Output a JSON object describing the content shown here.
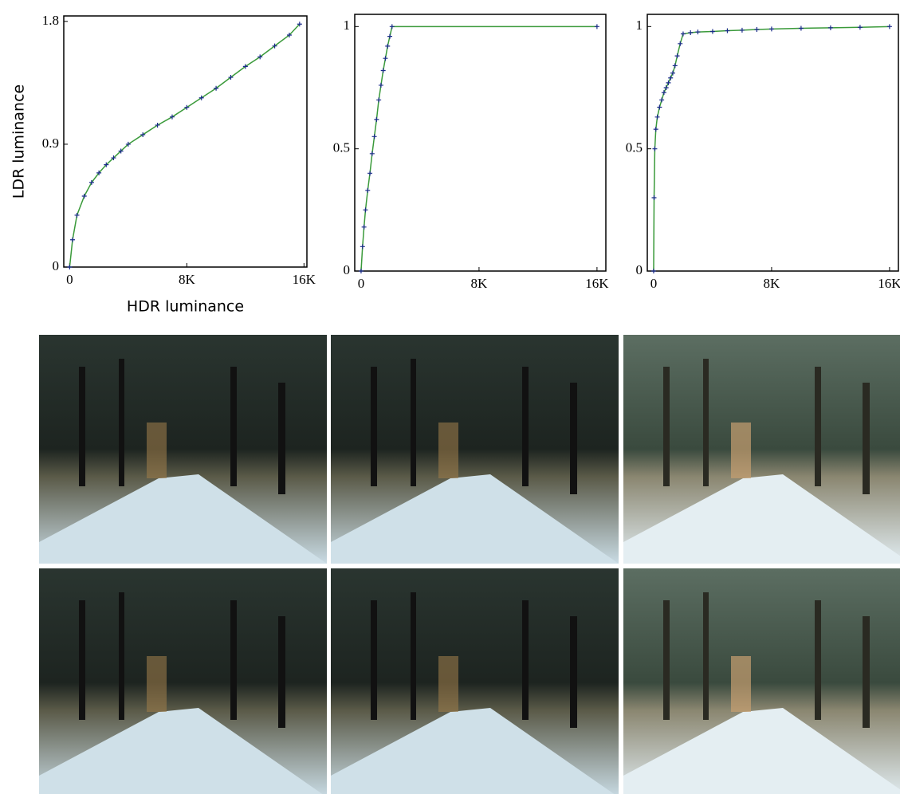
{
  "chart_data": [
    {
      "type": "line",
      "y_label": "LDR luminance",
      "x_label": "HDR luminance",
      "xlim": [
        -400,
        16200
      ],
      "ylim": [
        0,
        1.84
      ],
      "xticks": [
        0,
        {
          "value": 8000,
          "label": "8K"
        },
        {
          "value": 16000,
          "label": "16K"
        }
      ],
      "yticks": [
        0,
        0.9,
        1.8
      ],
      "series": [
        {
          "color": "#3a9a3a",
          "marker_color": "#1a2a8a",
          "x": [
            0,
            200,
            500,
            1000,
            1500,
            2000,
            2500,
            3000,
            3500,
            4000,
            5000,
            6000,
            7000,
            8000,
            9000,
            10000,
            11000,
            12000,
            13000,
            14000,
            15000,
            15700
          ],
          "values": [
            0,
            0.2,
            0.38,
            0.52,
            0.62,
            0.69,
            0.75,
            0.8,
            0.85,
            0.9,
            0.97,
            1.04,
            1.1,
            1.17,
            1.24,
            1.31,
            1.39,
            1.47,
            1.54,
            1.62,
            1.7,
            1.78
          ]
        }
      ]
    },
    {
      "type": "line",
      "xlim": [
        -430,
        16600
      ],
      "ylim": [
        0,
        1.05
      ],
      "xticks": [
        0,
        {
          "value": 8000,
          "label": "8K"
        },
        {
          "value": 16000,
          "label": "16K"
        }
      ],
      "yticks": [
        0,
        0.5,
        1
      ],
      "series": [
        {
          "color": "#3a9a3a",
          "marker_color": "#1a2a8a",
          "x": [
            0,
            100,
            200,
            300,
            450,
            600,
            750,
            900,
            1050,
            1200,
            1350,
            1500,
            1650,
            1800,
            1950,
            2100,
            16000
          ],
          "values": [
            0,
            0.1,
            0.18,
            0.25,
            0.33,
            0.4,
            0.48,
            0.55,
            0.62,
            0.7,
            0.76,
            0.82,
            0.87,
            0.92,
            0.96,
            1,
            1
          ]
        }
      ]
    },
    {
      "type": "line",
      "xlim": [
        -430,
        16600
      ],
      "ylim": [
        0,
        1.05
      ],
      "xticks": [
        0,
        {
          "value": 8000,
          "label": "8K"
        },
        {
          "value": 16000,
          "label": "16K"
        }
      ],
      "yticks": [
        0,
        0.5,
        1
      ],
      "series": [
        {
          "color": "#3a9a3a",
          "marker_color": "#1a2a8a",
          "x": [
            0,
            30,
            80,
            150,
            250,
            400,
            550,
            700,
            850,
            1000,
            1150,
            1300,
            1450,
            1600,
            1800,
            2000,
            2500,
            3000,
            4000,
            5000,
            6000,
            7000,
            8000,
            10000,
            12000,
            14000,
            16000
          ],
          "values": [
            0,
            0.3,
            0.5,
            0.58,
            0.63,
            0.67,
            0.7,
            0.73,
            0.75,
            0.77,
            0.79,
            0.81,
            0.84,
            0.88,
            0.93,
            0.97,
            0.975,
            0.978,
            0.98,
            0.983,
            0.985,
            0.988,
            0.99,
            0.993,
            0.995,
            0.997,
            1
          ]
        }
      ]
    }
  ]
}
